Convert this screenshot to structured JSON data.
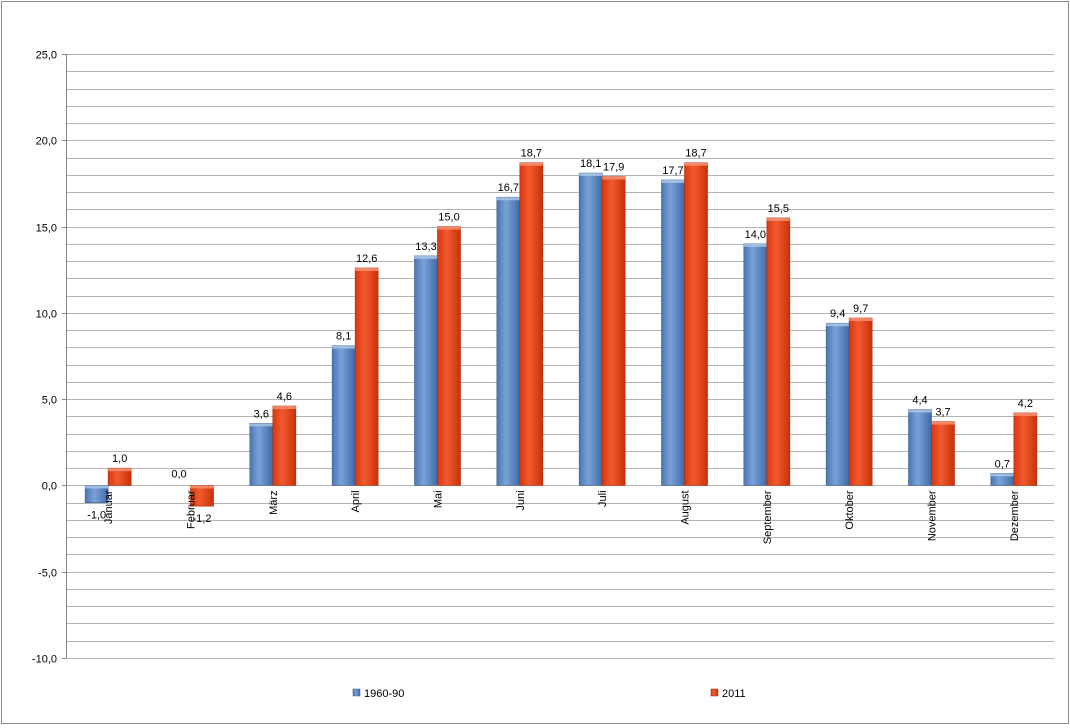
{
  "chart_data": {
    "type": "bar",
    "title": "",
    "xlabel": "",
    "ylabel": "",
    "categories": [
      "Januar",
      "Februar",
      "März",
      "April",
      "Mai",
      "Juni",
      "Juli",
      "August",
      "September",
      "Oktober",
      "November",
      "Dezember"
    ],
    "series": [
      {
        "name": "1960-90",
        "values": [
          -1.0,
          0.0,
          3.6,
          8.1,
          13.3,
          16.7,
          18.1,
          17.7,
          14.0,
          9.4,
          4.4,
          0.7
        ],
        "labels": [
          "-1,0",
          "0,0",
          "3,6",
          "8,1",
          "13,3",
          "16,7",
          "18,1",
          "17,7",
          "14,0",
          "9,4",
          "4,4",
          "0,7"
        ],
        "color": "#4f81bd"
      },
      {
        "name": "2011",
        "values": [
          1.0,
          -1.2,
          4.6,
          12.6,
          15.0,
          18.7,
          17.9,
          18.7,
          15.5,
          9.7,
          3.7,
          4.2
        ],
        "labels": [
          "1,0",
          "-1,2",
          "4,6",
          "12,6",
          "15,0",
          "18,7",
          "17,9",
          "18,7",
          "15,5",
          "9,7",
          "3,7",
          "4,2"
        ],
        "color": "#e8401c"
      }
    ],
    "ylim": [
      -10,
      25
    ],
    "yticks": [
      -10,
      -5,
      0,
      5,
      10,
      15,
      20,
      25
    ],
    "ytick_labels": [
      "-10,0",
      "-5,0",
      "0,0",
      "5,0",
      "10,0",
      "15,0",
      "20,0",
      "25,0"
    ],
    "minor_grid_step": 1,
    "grid": true,
    "legend_position": "bottom"
  }
}
